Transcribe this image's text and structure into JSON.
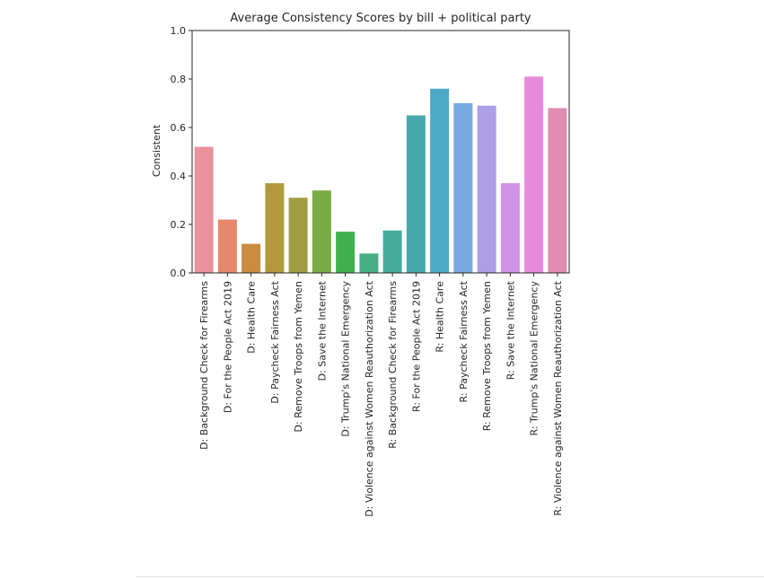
{
  "chart_data": {
    "type": "bar",
    "title": "Average Consistency Scores by bill + political party",
    "xlabel": "",
    "ylabel": "Consistent",
    "ylim": [
      0,
      1.0
    ],
    "yticks": [
      "0.0",
      "0.2",
      "0.4",
      "0.6",
      "0.8",
      "1.0"
    ],
    "grid": false,
    "categories": [
      "D: Background Check for Firearms",
      "D: For the People Act 2019",
      "D: Health Care",
      "D: Paycheck Fairness Act",
      "D: Remove Troops from Yemen",
      "D: Save the Internet",
      "D: Trump's National Emergency",
      "D: Violence against Women Reauthorization Act",
      "R: Background Check for Firearms",
      "R: For the People Act 2019",
      "R: Health Care",
      "R: Paycheck Fairness Act",
      "R: Remove Troops from Yemen",
      "R: Save the Internet",
      "R: Trump's National Emergency",
      "R: Violence against Women Reauthorization Act"
    ],
    "values": [
      0.52,
      0.22,
      0.12,
      0.37,
      0.31,
      0.34,
      0.17,
      0.08,
      0.175,
      0.65,
      0.76,
      0.7,
      0.69,
      0.37,
      0.81,
      0.68
    ],
    "colors": [
      "#e9919d",
      "#e6886c",
      "#ca8c3e",
      "#b29a3c",
      "#a09d43",
      "#79ab44",
      "#42b04f",
      "#45ae83",
      "#47ac9d",
      "#4aa9ae",
      "#4ea9c6",
      "#78a8e0",
      "#ad9ee8",
      "#d193e6",
      "#e68ad9",
      "#e18cb2"
    ]
  }
}
